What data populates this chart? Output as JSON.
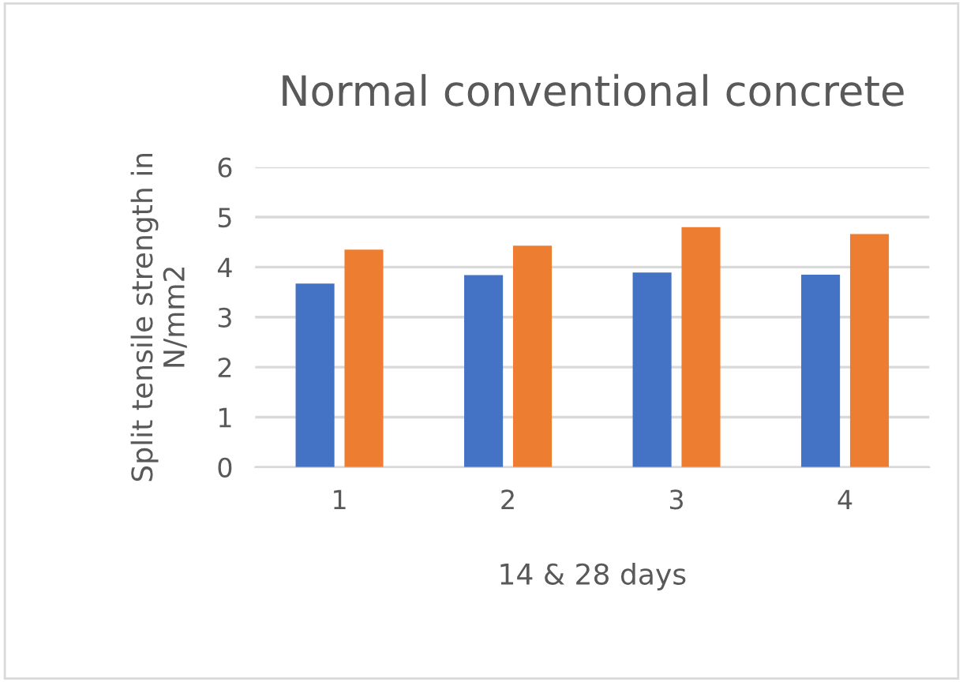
{
  "chart_data": {
    "type": "bar",
    "title": "Normal conventional concrete",
    "xlabel": "14 & 28 days",
    "ylabel": "Split tensile strength in\nN/mm2",
    "categories": [
      "1",
      "2",
      "3",
      "4"
    ],
    "series": [
      {
        "color": "#4472c4",
        "values": [
          3.67,
          3.84,
          3.89,
          3.85
        ]
      },
      {
        "color": "#ed7d31",
        "values": [
          4.35,
          4.43,
          4.8,
          4.66
        ]
      }
    ],
    "ylim": [
      0,
      6
    ],
    "yticks": [
      0,
      1,
      2,
      3,
      4,
      5,
      6
    ],
    "grid": "y"
  }
}
